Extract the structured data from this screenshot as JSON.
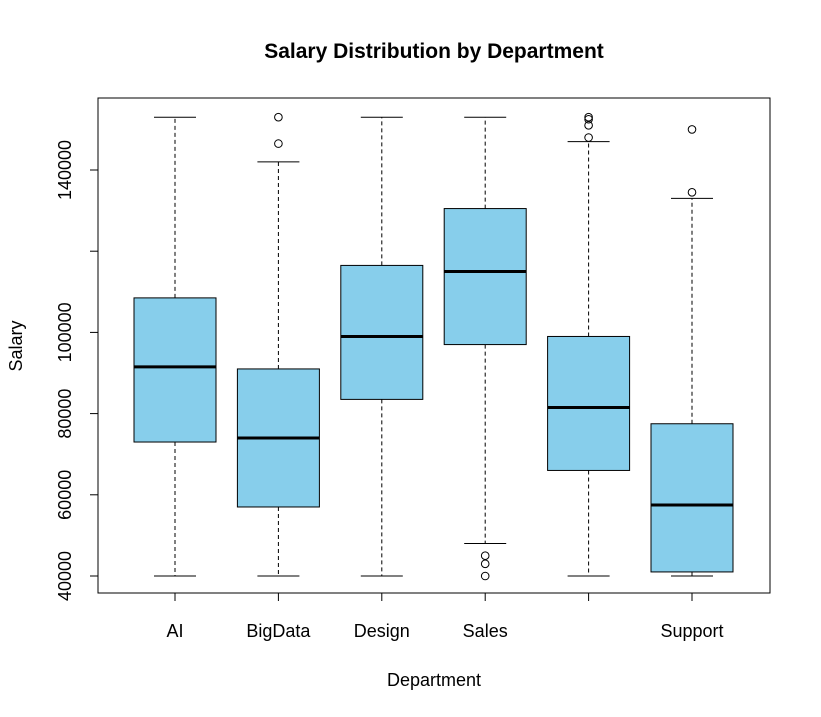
{
  "chart_data": {
    "type": "boxplot",
    "title": "Salary Distribution by Department",
    "xlabel": "Department",
    "ylabel": "Salary",
    "ylim": [
      36000,
      155000
    ],
    "yticks": [
      40000,
      60000,
      80000,
      100000,
      120000,
      140000
    ],
    "ytick_labels": [
      "40000",
      "60000",
      "80000",
      "100000",
      "",
      "140000"
    ],
    "categories": [
      "AI",
      "BigData",
      "Design",
      "Sales",
      "",
      "Support"
    ],
    "box_color": "#87CEEB",
    "grid": false,
    "boxes": [
      {
        "name": "AI",
        "whisker_low": 40000,
        "q1": 73000,
        "median": 91500,
        "q3": 108500,
        "whisker_high": 153000,
        "outliers": []
      },
      {
        "name": "BigData",
        "whisker_low": 40000,
        "q1": 57000,
        "median": 74000,
        "q3": 91000,
        "whisker_high": 142000,
        "outliers": [
          146500,
          153000
        ]
      },
      {
        "name": "Design",
        "whisker_low": 40000,
        "q1": 83500,
        "median": 99000,
        "q3": 116500,
        "whisker_high": 153000,
        "outliers": []
      },
      {
        "name": "Sales",
        "whisker_low": 48000,
        "q1": 97000,
        "median": 115000,
        "q3": 130500,
        "whisker_high": 153000,
        "outliers": [
          40000,
          43000,
          45000
        ]
      },
      {
        "name": "",
        "whisker_low": 40000,
        "q1": 66000,
        "median": 81500,
        "q3": 99000,
        "whisker_high": 147000,
        "outliers": [
          148000,
          151000,
          152500,
          153000
        ]
      },
      {
        "name": "Support",
        "whisker_low": 40000,
        "q1": 41000,
        "median": 57500,
        "q3": 77500,
        "whisker_high": 133000,
        "outliers": [
          134500,
          150000
        ]
      }
    ]
  }
}
